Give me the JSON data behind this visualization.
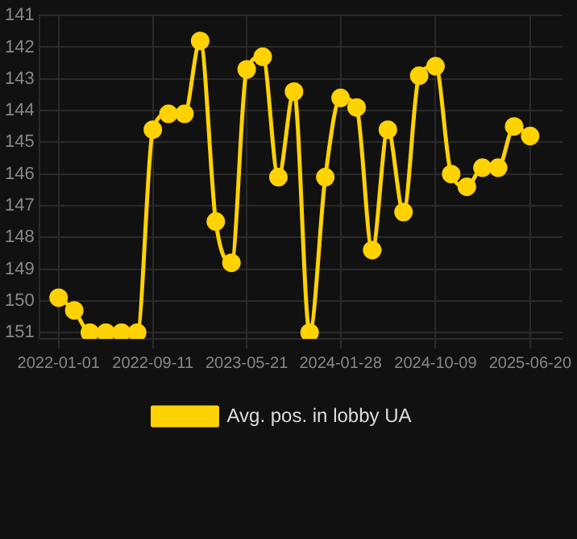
{
  "chart_data": {
    "type": "line",
    "x": [
      "2022-01-01",
      "2022-02-12",
      "2022-03-26",
      "2022-05-08",
      "2022-06-19",
      "2022-07-31",
      "2022-09-11",
      "2022-10-23",
      "2022-12-05",
      "2023-01-16",
      "2023-02-27",
      "2023-04-10",
      "2023-05-21",
      "2023-07-03",
      "2023-08-14",
      "2023-09-25",
      "2023-11-06",
      "2023-12-18",
      "2024-01-28",
      "2024-03-11",
      "2024-04-22",
      "2024-06-03",
      "2024-07-15",
      "2024-08-26",
      "2024-10-09",
      "2024-11-20",
      "2025-01-01",
      "2025-02-12",
      "2025-03-26",
      "2025-05-08",
      "2025-06-20"
    ],
    "series": [
      {
        "name": "Avg. pos. in lobby UA",
        "color": "#ffd200",
        "values": [
          149.9,
          150.3,
          151,
          151,
          151,
          151,
          144.6,
          144.1,
          144.1,
          141.8,
          147.5,
          148.8,
          142.7,
          142.3,
          146.1,
          143.4,
          151,
          146.1,
          143.6,
          143.9,
          148.4,
          144.6,
          147.2,
          142.9,
          142.6,
          146,
          146.4,
          145.8,
          145.8,
          144.5,
          144.8
        ]
      }
    ],
    "xlim": [
      "2021-11-10",
      "2025-09-15"
    ],
    "xticks": [
      "2022-01-01",
      "2022-09-11",
      "2023-05-21",
      "2024-01-28",
      "2024-10-09",
      "2025-06-20"
    ],
    "ylim": [
      151.2,
      141
    ],
    "yticks": [
      141,
      142,
      143,
      144,
      145,
      146,
      147,
      148,
      149,
      150,
      151
    ],
    "grid": true,
    "legend": "bottom",
    "marker": "circle",
    "line_style": "solid"
  }
}
